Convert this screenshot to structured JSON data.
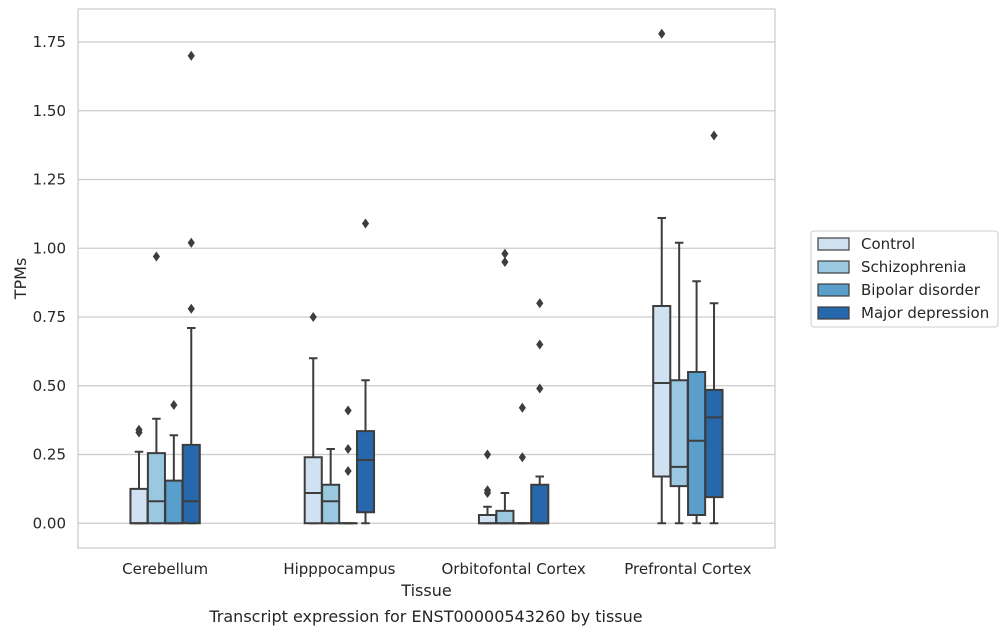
{
  "caption": "Transcript expression for ENST00000543260 by tissue",
  "chart_data": {
    "type": "box",
    "xlabel": "Tissue",
    "ylabel": "TPMs",
    "ylim": [
      -0.09,
      1.87
    ],
    "yticks": [
      0.0,
      0.25,
      0.5,
      0.75,
      1.0,
      1.25,
      1.5,
      1.75
    ],
    "ytick_labels": [
      "0.00",
      "0.25",
      "0.50",
      "0.75",
      "1.00",
      "1.25",
      "1.50",
      "1.75"
    ],
    "grid": "horizontal",
    "legend_position": "right",
    "categories": [
      "Cerebellum",
      "Hipppocampus",
      "Orbitofontal Cortex",
      "Prefrontal Cortex"
    ],
    "series": [
      {
        "name": "Control",
        "color": "#d0e1f2",
        "boxes": [
          {
            "min": 0.0,
            "q1": 0.0,
            "median": 0.0,
            "q3": 0.125,
            "max": 0.26,
            "outliers": [
              0.33,
              0.34
            ]
          },
          {
            "min": 0.0,
            "q1": 0.0,
            "median": 0.11,
            "q3": 0.24,
            "max": 0.6,
            "outliers": [
              0.75
            ]
          },
          {
            "min": 0.0,
            "q1": 0.0,
            "median": 0.0,
            "q3": 0.03,
            "max": 0.06,
            "outliers": [
              0.11,
              0.12,
              0.25
            ]
          },
          {
            "min": 0.0,
            "q1": 0.17,
            "median": 0.51,
            "q3": 0.79,
            "max": 1.11,
            "outliers": [
              1.78
            ]
          }
        ]
      },
      {
        "name": "Schizophrenia",
        "color": "#9ac8e0",
        "boxes": [
          {
            "min": 0.0,
            "q1": 0.0,
            "median": 0.08,
            "q3": 0.255,
            "max": 0.38,
            "outliers": [
              0.97
            ]
          },
          {
            "min": 0.0,
            "q1": 0.0,
            "median": 0.08,
            "q3": 0.14,
            "max": 0.27,
            "outliers": []
          },
          {
            "min": 0.0,
            "q1": 0.0,
            "median": 0.0,
            "q3": 0.045,
            "max": 0.11,
            "outliers": [
              0.95,
              0.98
            ]
          },
          {
            "min": 0.0,
            "q1": 0.135,
            "median": 0.205,
            "q3": 0.52,
            "max": 1.02,
            "outliers": []
          }
        ]
      },
      {
        "name": "Bipolar disorder",
        "color": "#5a9ecc",
        "boxes": [
          {
            "min": 0.0,
            "q1": 0.0,
            "median": 0.0,
            "q3": 0.155,
            "max": 0.32,
            "outliers": [
              0.43
            ]
          },
          {
            "min": 0.0,
            "q1": 0.0,
            "median": 0.0,
            "q3": 0.0,
            "max": 0.0,
            "outliers": [
              0.19,
              0.27,
              0.41
            ]
          },
          {
            "min": 0.0,
            "q1": 0.0,
            "median": 0.0,
            "q3": 0.0,
            "max": 0.0,
            "outliers": [
              0.24,
              0.42
            ]
          },
          {
            "min": 0.0,
            "q1": 0.03,
            "median": 0.3,
            "q3": 0.55,
            "max": 0.88,
            "outliers": []
          }
        ]
      },
      {
        "name": "Major depression",
        "color": "#2767ac",
        "boxes": [
          {
            "min": 0.0,
            "q1": 0.0,
            "median": 0.08,
            "q3": 0.285,
            "max": 0.71,
            "outliers": [
              0.78,
              1.02,
              1.7
            ]
          },
          {
            "min": 0.0,
            "q1": 0.04,
            "median": 0.23,
            "q3": 0.335,
            "max": 0.52,
            "outliers": [
              1.09
            ]
          },
          {
            "min": 0.0,
            "q1": 0.0,
            "median": 0.0,
            "q3": 0.14,
            "max": 0.17,
            "outliers": [
              0.49,
              0.65,
              0.8
            ]
          },
          {
            "min": 0.0,
            "q1": 0.095,
            "median": 0.385,
            "q3": 0.485,
            "max": 0.8,
            "outliers": [
              1.41
            ]
          }
        ]
      }
    ]
  }
}
